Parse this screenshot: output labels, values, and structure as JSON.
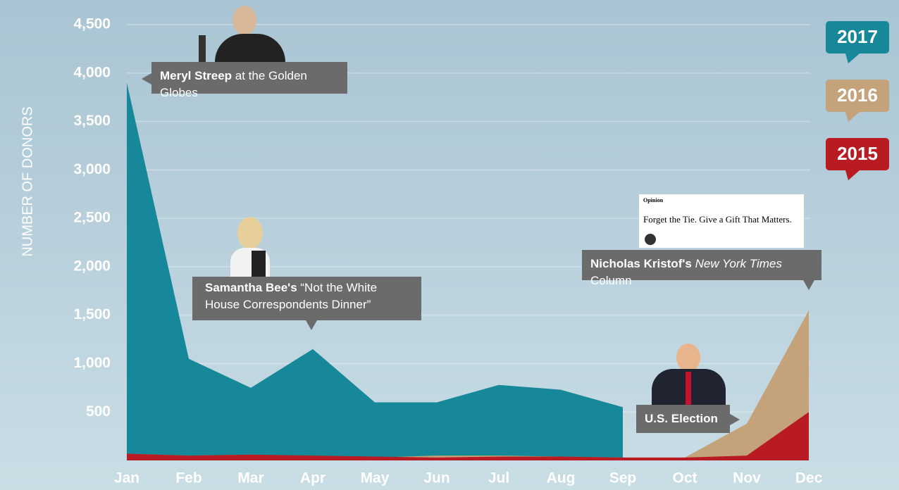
{
  "chart_data": {
    "type": "area",
    "y_label": "NUMBER OF DONORS",
    "categories": [
      "Jan",
      "Feb",
      "Mar",
      "Apr",
      "May",
      "Jun",
      "Jul",
      "Aug",
      "Sep",
      "Oct",
      "Nov",
      "Dec"
    ],
    "series": [
      {
        "name": "2017",
        "color": "#17879a",
        "values": [
          3900,
          1050,
          750,
          1150,
          600,
          600,
          780,
          730,
          550,
          null,
          null,
          null
        ]
      },
      {
        "name": "2016",
        "color": "#c4a27a",
        "values": [
          70,
          50,
          60,
          40,
          30,
          50,
          50,
          40,
          30,
          30,
          380,
          1550
        ]
      },
      {
        "name": "2015",
        "color": "#b81c22",
        "values": [
          70,
          50,
          60,
          50,
          40,
          30,
          40,
          40,
          30,
          30,
          50,
          500
        ]
      }
    ],
    "ylim": [
      0,
      4700
    ],
    "yticks": [
      500,
      {
        "value": 1000,
        "label": "1,000"
      },
      {
        "value": 1500,
        "label": "1,500"
      },
      {
        "value": 2000,
        "label": "2,000"
      },
      {
        "value": 2500,
        "label": "2,500"
      },
      {
        "value": 3000,
        "label": "3,000"
      },
      {
        "value": 3500,
        "label": "3,500"
      },
      {
        "value": 4000,
        "label": "4,000"
      },
      {
        "value": 4500,
        "label": "4,500"
      }
    ],
    "grid": true,
    "annotations": [
      {
        "bold": "Meryl Streep",
        "text": "at the Golden Globes"
      },
      {
        "bold": "Samantha Bee's",
        "text": "“Not the White House Correspondents Dinner”"
      },
      {
        "bold": "Nicholas Kristof's",
        "italic": "New York Times",
        "text": "Column",
        "clip_kicker": "Opinion",
        "clip_headline": "Forget the Tie. Give a Gift That Matters."
      },
      {
        "bold": "U.S. Election"
      }
    ]
  }
}
